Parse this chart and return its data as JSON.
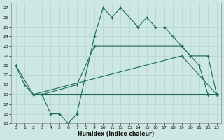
{
  "xlabel": "Humidex (Indice chaleur)",
  "xlim": [
    -0.5,
    23.5
  ],
  "ylim": [
    15,
    27.5
  ],
  "xticks": [
    0,
    1,
    2,
    3,
    4,
    5,
    6,
    7,
    8,
    9,
    10,
    11,
    12,
    13,
    14,
    15,
    16,
    17,
    18,
    19,
    20,
    21,
    22,
    23
  ],
  "yticks": [
    15,
    16,
    17,
    18,
    19,
    20,
    21,
    22,
    23,
    24,
    25,
    26,
    27
  ],
  "bg_color": "#cde8e2",
  "line_color": "#1a6b5a",
  "grid_color": "#b5d4cc",
  "lines": [
    {
      "x": [
        0,
        1,
        2,
        3,
        4,
        5,
        6,
        7,
        9,
        10,
        11,
        12,
        14,
        15,
        16,
        17,
        18,
        19,
        20,
        21,
        22,
        23
      ],
      "y": [
        21,
        19,
        18,
        18,
        16,
        16,
        15,
        16,
        24,
        27,
        26,
        27,
        25,
        26,
        25,
        25,
        24,
        23,
        22,
        21,
        18,
        18
      ]
    },
    {
      "x": [
        0,
        2,
        3,
        7,
        9,
        19,
        20,
        22,
        23
      ],
      "y": [
        21,
        18,
        18,
        19,
        23,
        23,
        22,
        22,
        18
      ]
    },
    {
      "x": [
        2,
        19,
        23
      ],
      "y": [
        18,
        22,
        18
      ]
    },
    {
      "x": [
        2,
        22,
        23
      ],
      "y": [
        18,
        18,
        18
      ]
    }
  ]
}
